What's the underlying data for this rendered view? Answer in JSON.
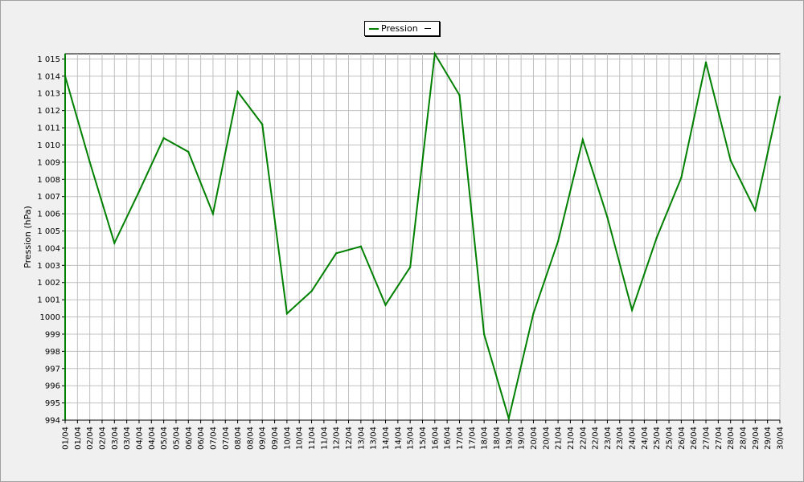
{
  "chart_data": {
    "type": "line",
    "ylabel": "Pression (hPa)",
    "ylim": [
      994,
      1015.3
    ],
    "yticks": [
      994,
      995,
      996,
      997,
      998,
      999,
      1000,
      1001,
      1002,
      1003,
      1004,
      1005,
      1006,
      1007,
      1008,
      1009,
      1010,
      1011,
      1012,
      1013,
      1014,
      1015
    ],
    "ytick_labels": [
      "994",
      "995",
      "996",
      "997",
      "998",
      "999",
      "1000",
      "1 001",
      "1 002",
      "1 003",
      "1 004",
      "1 005",
      "1 006",
      "1 007",
      "1 008",
      "1 009",
      "1 010",
      "1 011",
      "1 012",
      "1 013",
      "1 014",
      "1 015"
    ],
    "xtick_labels": [
      "01/04",
      "01/04",
      "02/04",
      "02/04",
      "03/04",
      "03/04",
      "04/04",
      "04/04",
      "05/04",
      "05/04",
      "06/04",
      "06/04",
      "07/04",
      "07/04",
      "08/04",
      "08/04",
      "09/04",
      "09/04",
      "10/04",
      "10/04",
      "11/04",
      "11/04",
      "12/04",
      "12/04",
      "13/04",
      "13/04",
      "14/04",
      "14/04",
      "15/04",
      "15/04",
      "16/04",
      "16/04",
      "17/04",
      "17/04",
      "18/04",
      "18/04",
      "19/04",
      "19/04",
      "20/04",
      "20/04",
      "21/04",
      "21/04",
      "22/04",
      "22/04",
      "23/04",
      "23/04",
      "24/04",
      "24/04",
      "25/04",
      "25/04",
      "26/04",
      "26/04",
      "27/04",
      "27/04",
      "28/04",
      "28/04",
      "29/04",
      "29/04",
      "30/04"
    ],
    "grid": true,
    "legend": "top-center",
    "series": [
      {
        "name": "Pression",
        "color": "#008000",
        "x": [
          "01/04",
          "02/04",
          "03/04",
          "04/04",
          "05/04",
          "06/04",
          "07/04",
          "08/04",
          "09/04",
          "10/04",
          "11/04",
          "12/04",
          "13/04",
          "14/04",
          "15/04",
          "16/04",
          "17/04",
          "18/04",
          "19/04",
          "20/04",
          "21/04",
          "22/04",
          "23/04",
          "24/04",
          "25/04",
          "26/04",
          "27/04",
          "28/04",
          "29/04",
          "30/04"
        ],
        "values": [
          1014.0,
          1009.0,
          1004.3,
          1007.3,
          1010.4,
          1009.6,
          1006.0,
          1013.1,
          1011.2,
          1000.2,
          1001.5,
          1003.7,
          1004.1,
          1000.7,
          1002.9,
          1015.3,
          1012.9,
          999.0,
          994.1,
          1000.2,
          1004.4,
          1010.3,
          1005.8,
          1000.4,
          1004.6,
          1008.1,
          1014.8,
          1009.1,
          1006.2,
          1012.8
        ]
      }
    ],
    "legend_extra": "—"
  }
}
